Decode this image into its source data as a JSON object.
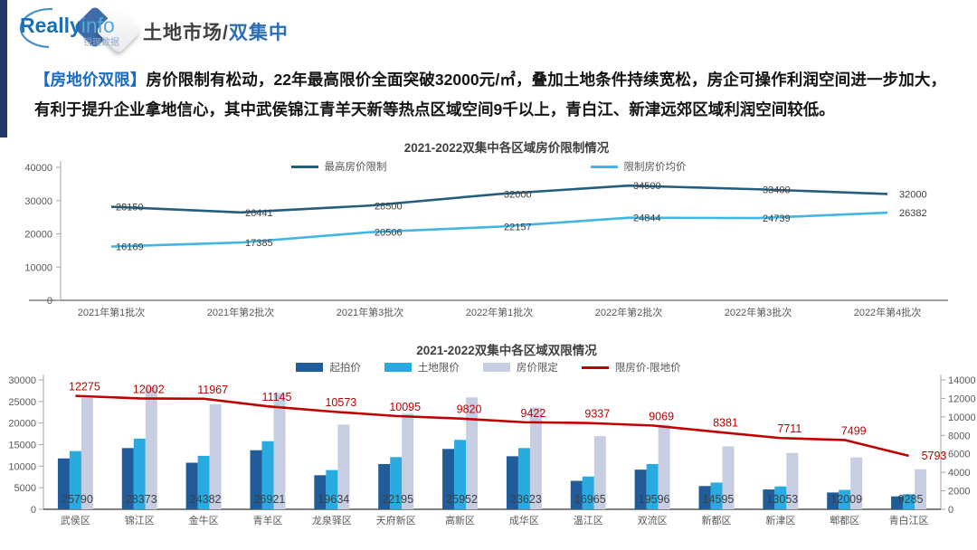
{
  "header": {
    "title_prefix": "土地市场/",
    "title_accent": "双集中",
    "logo": {
      "main_bold": "Really",
      "main_light": "info",
      "sub": "锐理数据"
    }
  },
  "summary": {
    "tag": "【房地价双限】",
    "body": "房价限制有松动，22年最高限价全面突破32000元/㎡，叠加土地条件持续宽松，房企可操作利润空间进一步加大，有利于提升企业拿地信心，其中武侯锦江青羊天新等热点区域空间9千以上，青白江、新津远郊区域利润空间较低。"
  },
  "chart_data": [
    {
      "type": "line",
      "title": "2021-2022双集中各区域房价限制情况",
      "categories": [
        "2021年第1批次",
        "2021年第2批次",
        "2021年第3批次",
        "2022年第1批次",
        "2022年第2批次",
        "2022年第3批次",
        "2022年第4批次"
      ],
      "series": [
        {
          "name": "最高房价限制",
          "color": "#235E7E",
          "values": [
            28150,
            26441,
            28500,
            32000,
            34500,
            33400,
            32000
          ]
        },
        {
          "name": "限制房价均价",
          "color": "#3FB6E3",
          "values": [
            16169,
            17385,
            20506,
            22157,
            24844,
            24739,
            26382
          ]
        }
      ],
      "ylim": [
        0,
        40000
      ],
      "yticks": [
        0,
        10000,
        20000,
        30000,
        40000
      ],
      "grid": false,
      "legend_position": "top",
      "data_labels": true
    },
    {
      "type": "bar",
      "title": "2021-2022双集中各区域双限情况",
      "categories": [
        "武侯区",
        "锦江区",
        "金牛区",
        "青羊区",
        "龙泉驿区",
        "天府新区",
        "高新区",
        "成华区",
        "温江区",
        "双流区",
        "新都区",
        "新津区",
        "郫都区",
        "青白江区"
      ],
      "series": [
        {
          "name": "起拍价",
          "type": "bar",
          "axis": "left",
          "color": "#1F5C99",
          "values": [
            11800,
            14200,
            10800,
            13700,
            7900,
            10500,
            14000,
            12300,
            6600,
            9200,
            5400,
            4600,
            3900,
            3000
          ]
        },
        {
          "name": "土地限价",
          "type": "bar",
          "axis": "left",
          "color": "#29ABE2",
          "values": [
            13500,
            16400,
            12400,
            15800,
            9100,
            12100,
            16100,
            14200,
            7600,
            10500,
            6200,
            5300,
            4500,
            3500
          ]
        },
        {
          "name": "房价限定",
          "type": "bar",
          "axis": "left",
          "color": "#C8CEE2",
          "data_labels": true,
          "values": [
            25790,
            28373,
            24382,
            26921,
            19634,
            22195,
            25952,
            23623,
            16965,
            19596,
            14595,
            13053,
            12009,
            9285
          ]
        },
        {
          "name": "限房价-限地价",
          "type": "line",
          "axis": "right",
          "color": "#C00000",
          "data_labels": true,
          "values": [
            12275,
            12002,
            11967,
            11145,
            10573,
            10095,
            9820,
            9422,
            9337,
            9069,
            8381,
            7711,
            7499,
            5793
          ]
        }
      ],
      "left_ylim": [
        0,
        30000
      ],
      "left_yticks": [
        0,
        5000,
        10000,
        15000,
        20000,
        25000,
        30000
      ],
      "right_ylim": [
        0,
        14000
      ],
      "right_yticks": [
        0,
        2000,
        4000,
        6000,
        8000,
        10000,
        12000,
        14000
      ],
      "grid": false,
      "legend_position": "top"
    }
  ]
}
